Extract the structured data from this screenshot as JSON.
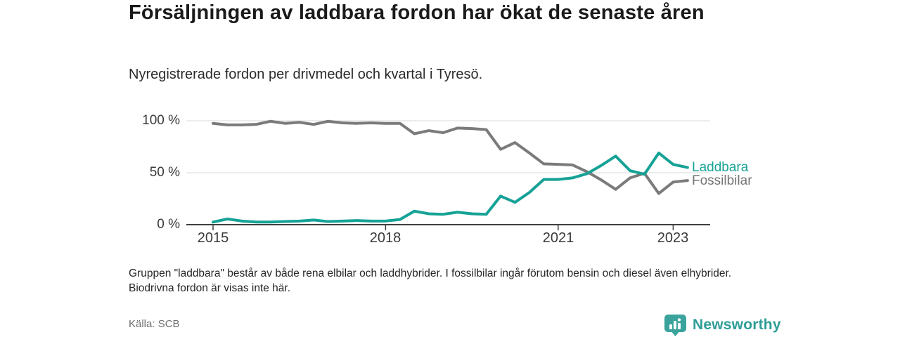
{
  "header": {
    "title": "Försäljningen av laddbara fordon har ökat de senaste åren",
    "subtitle": "Nyregistrerade fordon per drivmedel och kvartal i Tyresö."
  },
  "chart_data": {
    "type": "line",
    "title": "Nyregistrerade fordon per drivmedel och kvartal i Tyresö",
    "unit": "%",
    "grid": "horizontal",
    "legend_position": "line-end-labels-right",
    "x": [
      "2015 Q1",
      "2015 Q2",
      "2015 Q3",
      "2015 Q4",
      "2016 Q1",
      "2016 Q2",
      "2016 Q3",
      "2016 Q4",
      "2017 Q1",
      "2017 Q2",
      "2017 Q3",
      "2017 Q4",
      "2018 Q1",
      "2018 Q2",
      "2018 Q3",
      "2018 Q4",
      "2019 Q1",
      "2019 Q2",
      "2019 Q3",
      "2019 Q4",
      "2020 Q1",
      "2020 Q2",
      "2020 Q3",
      "2020 Q4",
      "2021 Q1",
      "2021 Q2",
      "2021 Q3",
      "2021 Q4",
      "2022 Q1",
      "2022 Q2",
      "2022 Q3",
      "2022 Q4",
      "2023 Q1",
      "2023 Q2"
    ],
    "series": [
      {
        "name": "Laddbara",
        "color": "#16a296",
        "values": [
          2.5,
          5.5,
          3.5,
          2.5,
          2.5,
          3,
          3.5,
          4.5,
          3,
          3.5,
          4,
          3.5,
          3.5,
          5,
          13,
          10.5,
          10,
          12,
          10.5,
          10,
          27.5,
          21.5,
          31,
          43.5,
          43.5,
          45,
          49,
          57,
          66,
          52,
          48.5,
          69,
          58,
          55
        ]
      },
      {
        "name": "Fossilbilar",
        "color": "#7b7b7b",
        "values": [
          97.5,
          96,
          96,
          96.5,
          99.5,
          97.5,
          98.5,
          96.5,
          99.5,
          98,
          97.5,
          98,
          97.5,
          97.5,
          87.5,
          90.5,
          88.5,
          93,
          92.5,
          91.5,
          72.5,
          79,
          69,
          58.5,
          58,
          57.5,
          51,
          43,
          34,
          45,
          49.5,
          30,
          41,
          42.5
        ]
      }
    ],
    "y_axis": {
      "ylim": [
        0,
        100
      ],
      "tick_values": [
        0,
        50,
        100
      ],
      "tick_labels": [
        "0 %",
        "50 %",
        "100 %"
      ]
    },
    "x_axis": {
      "tick_labels": [
        "2015",
        "2018",
        "2021",
        "2023"
      ],
      "tick_quarters": [
        "2015 Q1",
        "2018 Q1",
        "2021 Q1",
        "2023 Q1"
      ]
    }
  },
  "footnote": "Gruppen \"laddbara\" består av både rena elbilar och laddhybrider. I fossilbilar ingår förutom bensin och diesel även elhybrider. Biodrivna fordon är visas inte här.",
  "source": "Källa: SCB",
  "logo": {
    "text": "Newsworthy",
    "color": "#2e9d96",
    "icon_color": "#3aa39c"
  }
}
